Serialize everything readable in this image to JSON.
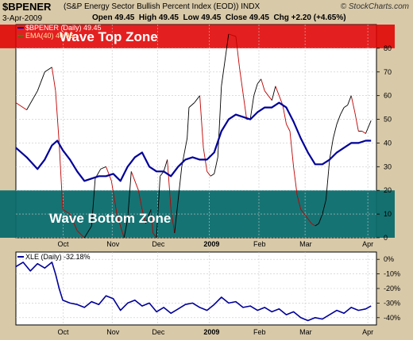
{
  "header": {
    "symbol": "$BPENER",
    "description": "(S&P Energy Sector Bullish Percent Index (EOD))  INDX",
    "date": "3-Apr-2009",
    "ohlc": "Open 49.45  High 49.45  Low 49.45  Close 49.45  Chg +2.20 (+4.65%)",
    "brand": "© StockCharts.com"
  },
  "colors": {
    "background": "#d8c9a8",
    "plot": "#ffffff",
    "grid": "#c8c8c8",
    "bp_line": "#000000",
    "bp_down": "#c00000",
    "ema": "#000099",
    "top_zone": "#e00000",
    "bottom_zone": "#0a6b6b",
    "xle_line": "#000099"
  },
  "chart_data": [
    {
      "type": "line",
      "legend": [
        {
          "label": "$BPENER (Daily) 49.45",
          "color": "#0000aa"
        },
        {
          "label": "EMA(40) 40.96",
          "color": "#009900"
        }
      ],
      "annotations": [
        "Wave Top Zone",
        "Wave Bottom Zone"
      ],
      "zones": [
        {
          "name": "Wave Top Zone",
          "from": 80,
          "to": 90
        },
        {
          "name": "Wave Bottom Zone",
          "from": 0,
          "to": 20
        }
      ],
      "ylim": [
        0,
        90
      ],
      "yticks": [
        0,
        10,
        20,
        30,
        40,
        50,
        60,
        70,
        80
      ],
      "xlabels": [
        {
          "label": "Oct",
          "t": 0.131
        },
        {
          "label": "Nov",
          "t": 0.267
        },
        {
          "label": "Dec",
          "t": 0.393
        },
        {
          "label": "2009",
          "t": 0.536
        },
        {
          "label": "Feb",
          "t": 0.674
        },
        {
          "label": "Mar",
          "t": 0.802
        },
        {
          "label": "Apr",
          "t": 0.976
        }
      ],
      "grid": true,
      "series": [
        {
          "name": "$BPENER",
          "values": [
            [
              0.0,
              57
            ],
            [
              0.03,
              54
            ],
            [
              0.06,
              62
            ],
            [
              0.08,
              70
            ],
            [
              0.1,
              72
            ],
            [
              0.11,
              62
            ],
            [
              0.12,
              40
            ],
            [
              0.13,
              12
            ],
            [
              0.15,
              10
            ],
            [
              0.17,
              3
            ],
            [
              0.19,
              0
            ],
            [
              0.21,
              5
            ],
            [
              0.22,
              25
            ],
            [
              0.235,
              29
            ],
            [
              0.25,
              30
            ],
            [
              0.265,
              24
            ],
            [
              0.28,
              10
            ],
            [
              0.3,
              0
            ],
            [
              0.31,
              8
            ],
            [
              0.32,
              28
            ],
            [
              0.34,
              20
            ],
            [
              0.35,
              12
            ],
            [
              0.36,
              6
            ],
            [
              0.375,
              12
            ],
            [
              0.38,
              2
            ],
            [
              0.39,
              0
            ],
            [
              0.4,
              26
            ],
            [
              0.41,
              28
            ],
            [
              0.42,
              33
            ],
            [
              0.43,
              12
            ],
            [
              0.44,
              2
            ],
            [
              0.46,
              30
            ],
            [
              0.475,
              42
            ],
            [
              0.48,
              55
            ],
            [
              0.495,
              57
            ],
            [
              0.51,
              60
            ],
            [
              0.52,
              38
            ],
            [
              0.53,
              28
            ],
            [
              0.54,
              26
            ],
            [
              0.55,
              27
            ],
            [
              0.56,
              34
            ],
            [
              0.57,
              64
            ],
            [
              0.59,
              86
            ],
            [
              0.61,
              85
            ],
            [
              0.62,
              72
            ],
            [
              0.64,
              50
            ],
            [
              0.65,
              50
            ],
            [
              0.66,
              60
            ],
            [
              0.67,
              65
            ],
            [
              0.68,
              67
            ],
            [
              0.69,
              62
            ],
            [
              0.7,
              60
            ],
            [
              0.71,
              58
            ],
            [
              0.72,
              64
            ],
            [
              0.73,
              60
            ],
            [
              0.74,
              56
            ],
            [
              0.75,
              48
            ],
            [
              0.76,
              45
            ],
            [
              0.77,
              30
            ],
            [
              0.78,
              18
            ],
            [
              0.79,
              12
            ],
            [
              0.8,
              10
            ],
            [
              0.81,
              8
            ],
            [
              0.82,
              6
            ],
            [
              0.83,
              5
            ],
            [
              0.84,
              6
            ],
            [
              0.85,
              10
            ],
            [
              0.86,
              16
            ],
            [
              0.87,
              33
            ],
            [
              0.88,
              42
            ],
            [
              0.89,
              48
            ],
            [
              0.9,
              52
            ],
            [
              0.91,
              55
            ],
            [
              0.92,
              56
            ],
            [
              0.93,
              60
            ],
            [
              0.94,
              53
            ],
            [
              0.95,
              45
            ],
            [
              0.96,
              45
            ],
            [
              0.97,
              44
            ],
            [
              0.985,
              49.45
            ]
          ]
        },
        {
          "name": "EMA(40)",
          "values": [
            [
              0.0,
              38
            ],
            [
              0.03,
              34
            ],
            [
              0.06,
              29
            ],
            [
              0.08,
              33
            ],
            [
              0.1,
              39
            ],
            [
              0.115,
              41
            ],
            [
              0.13,
              37
            ],
            [
              0.15,
              33
            ],
            [
              0.17,
              28
            ],
            [
              0.19,
              24
            ],
            [
              0.21,
              25
            ],
            [
              0.23,
              26
            ],
            [
              0.25,
              26
            ],
            [
              0.27,
              27
            ],
            [
              0.29,
              24
            ],
            [
              0.31,
              30
            ],
            [
              0.33,
              34
            ],
            [
              0.35,
              36
            ],
            [
              0.37,
              30
            ],
            [
              0.39,
              28
            ],
            [
              0.41,
              28
            ],
            [
              0.43,
              26
            ],
            [
              0.45,
              30
            ],
            [
              0.47,
              33
            ],
            [
              0.49,
              34
            ],
            [
              0.51,
              33
            ],
            [
              0.53,
              33
            ],
            [
              0.55,
              36
            ],
            [
              0.57,
              45
            ],
            [
              0.59,
              50
            ],
            [
              0.61,
              52
            ],
            [
              0.63,
              51
            ],
            [
              0.65,
              50
            ],
            [
              0.67,
              53
            ],
            [
              0.69,
              55
            ],
            [
              0.71,
              55
            ],
            [
              0.73,
              57
            ],
            [
              0.75,
              55
            ],
            [
              0.77,
              49
            ],
            [
              0.79,
              42
            ],
            [
              0.81,
              36
            ],
            [
              0.83,
              31
            ],
            [
              0.85,
              31
            ],
            [
              0.87,
              33
            ],
            [
              0.89,
              36
            ],
            [
              0.91,
              38
            ],
            [
              0.93,
              40
            ],
            [
              0.95,
              40
            ],
            [
              0.97,
              41
            ],
            [
              0.985,
              41
            ]
          ]
        }
      ]
    },
    {
      "type": "line",
      "legend": [
        {
          "label": "XLE (Daily) -32.18%",
          "color": "#000099"
        }
      ],
      "ylim": [
        -45,
        5
      ],
      "yticks": [
        0,
        -10,
        -20,
        -30,
        -40
      ],
      "ytick_labels": [
        "0%",
        "-10%",
        "-20%",
        "-30%",
        "-40%"
      ],
      "grid": true,
      "series": [
        {
          "name": "XLE",
          "values": [
            [
              0.0,
              -5
            ],
            [
              0.02,
              -2
            ],
            [
              0.04,
              -8
            ],
            [
              0.06,
              -3
            ],
            [
              0.08,
              -6
            ],
            [
              0.1,
              -2
            ],
            [
              0.11,
              -10
            ],
            [
              0.12,
              -20
            ],
            [
              0.13,
              -28
            ],
            [
              0.15,
              -30
            ],
            [
              0.17,
              -31
            ],
            [
              0.19,
              -33
            ],
            [
              0.21,
              -29
            ],
            [
              0.23,
              -31
            ],
            [
              0.25,
              -25
            ],
            [
              0.27,
              -27
            ],
            [
              0.29,
              -35
            ],
            [
              0.31,
              -30
            ],
            [
              0.33,
              -28
            ],
            [
              0.35,
              -32
            ],
            [
              0.37,
              -30
            ],
            [
              0.39,
              -36
            ],
            [
              0.41,
              -33
            ],
            [
              0.43,
              -37
            ],
            [
              0.45,
              -34
            ],
            [
              0.47,
              -31
            ],
            [
              0.49,
              -30
            ],
            [
              0.51,
              -33
            ],
            [
              0.53,
              -35
            ],
            [
              0.55,
              -31
            ],
            [
              0.57,
              -26
            ],
            [
              0.59,
              -30
            ],
            [
              0.61,
              -29
            ],
            [
              0.63,
              -33
            ],
            [
              0.65,
              -32
            ],
            [
              0.67,
              -35
            ],
            [
              0.69,
              -33
            ],
            [
              0.71,
              -36
            ],
            [
              0.73,
              -34
            ],
            [
              0.75,
              -38
            ],
            [
              0.77,
              -36
            ],
            [
              0.79,
              -40
            ],
            [
              0.81,
              -42
            ],
            [
              0.83,
              -40
            ],
            [
              0.85,
              -41
            ],
            [
              0.87,
              -38
            ],
            [
              0.89,
              -35
            ],
            [
              0.91,
              -37
            ],
            [
              0.93,
              -33
            ],
            [
              0.95,
              -35
            ],
            [
              0.97,
              -34
            ],
            [
              0.985,
              -32
            ]
          ]
        }
      ]
    }
  ]
}
